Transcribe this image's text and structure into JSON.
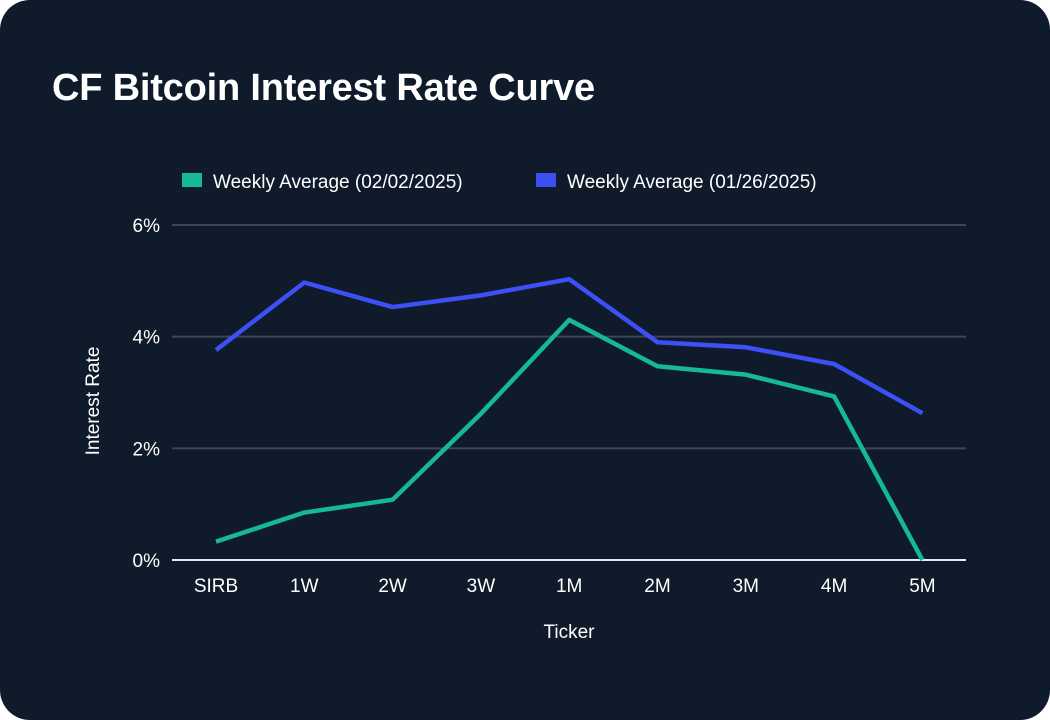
{
  "chart_data": {
    "type": "line",
    "title": "CF Bitcoin Interest Rate Curve",
    "xlabel": "Ticker",
    "ylabel": "Interest Rate",
    "categories": [
      "SIRB",
      "1W",
      "2W",
      "3W",
      "1M",
      "2M",
      "3M",
      "4M",
      "5M"
    ],
    "ylim": [
      0,
      6
    ],
    "yticks": [
      0,
      2,
      4,
      6
    ],
    "ytick_labels": [
      "0%",
      "2%",
      "4%",
      "6%"
    ],
    "grid": "horizontal",
    "legend_position": "top-center",
    "series": [
      {
        "name": "Weekly Average (02/02/2025)",
        "color": "#17b897",
        "values": [
          0.33,
          0.85,
          1.08,
          2.62,
          4.3,
          3.47,
          3.32,
          2.93,
          0.0
        ]
      },
      {
        "name": "Weekly Average (01/26/2025)",
        "color": "#3d50f5",
        "values": [
          3.76,
          4.97,
          4.53,
          4.74,
          5.03,
          3.9,
          3.81,
          3.51,
          2.63
        ]
      }
    ]
  }
}
